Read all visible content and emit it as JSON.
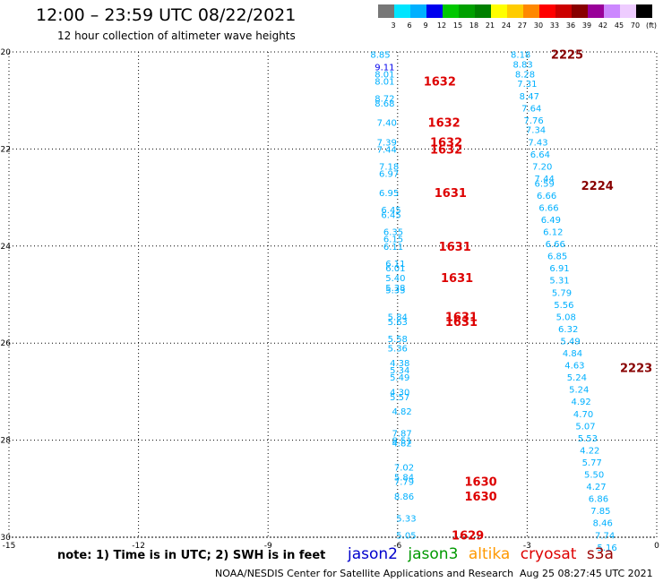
{
  "header": {
    "title": "12:00 – 23:59 UTC 08/22/2021",
    "subtitle": "12 hour collection of altimeter wave heights"
  },
  "footer": {
    "note": "note: 1) Time is in UTC; 2) SWH is in feet",
    "credit": "NOAA/NESDIS Center for Satellite Applications and Research",
    "timestamp": "Aug 25 08:27:45 UTC 2021"
  },
  "satellites": [
    {
      "name": "jason2",
      "color": "#0000cc"
    },
    {
      "name": "jason3",
      "color": "#009900"
    },
    {
      "name": "altika",
      "color": "#ff9900"
    },
    {
      "name": "cryosat",
      "color": "#dd0000"
    },
    {
      "name": "s3a",
      "color": "#990000"
    }
  ],
  "colorbar": {
    "labels": [
      "3",
      "6",
      "9",
      "12",
      "15",
      "18",
      "21",
      "24",
      "27",
      "30",
      "33",
      "36",
      "39",
      "42",
      "45",
      "70",
      "(ft)"
    ],
    "colors": [
      "#777777",
      "#00e5ff",
      "#00b0ff",
      "#0000ee",
      "#00c800",
      "#00a000",
      "#008000",
      "#ffff00",
      "#ffcc00",
      "#ff8800",
      "#ff0000",
      "#cc0000",
      "#880000",
      "#990099",
      "#cc88ff",
      "#eeccff",
      "#000000"
    ]
  },
  "chart_data": {
    "type": "scatter",
    "title": "12:00 – 23:59 UTC 08/22/2021",
    "xlabel": "",
    "ylabel": "",
    "xlim": [
      -15,
      0
    ],
    "ylim": [
      -30,
      -20
    ],
    "x_ticks": [
      "-15",
      "-12",
      "-9",
      "-6",
      "-3",
      "0"
    ],
    "y_ticks": [
      "-20",
      "-22",
      "-24",
      "-26",
      "-28",
      "-30"
    ],
    "grid": true,
    "wave_heights": [
      {
        "lon": -6.4,
        "lat": -20.05,
        "swh": "8.85",
        "color": "#00b0ff"
      },
      {
        "lon": -6.3,
        "lat": -20.3,
        "swh": "9.11",
        "color": "#0000ee"
      },
      {
        "lon": -6.3,
        "lat": -20.45,
        "swh": "8.01",
        "color": "#00b0ff"
      },
      {
        "lon": -6.3,
        "lat": -20.6,
        "swh": "8.01",
        "color": "#00b0ff"
      },
      {
        "lon": -6.3,
        "lat": -20.95,
        "swh": "8.72",
        "color": "#00b0ff"
      },
      {
        "lon": -6.3,
        "lat": -21.05,
        "swh": "8.68",
        "color": "#00b0ff"
      },
      {
        "lon": -6.25,
        "lat": -21.45,
        "swh": "7.40",
        "color": "#00b0ff"
      },
      {
        "lon": -6.25,
        "lat": -21.85,
        "swh": "7.39",
        "color": "#00b0ff"
      },
      {
        "lon": -6.25,
        "lat": -22.0,
        "swh": "7.44",
        "color": "#00b0ff"
      },
      {
        "lon": -6.2,
        "lat": -22.35,
        "swh": "7.18",
        "color": "#00b0ff"
      },
      {
        "lon": -6.2,
        "lat": -22.5,
        "swh": "6.97",
        "color": "#00b0ff"
      },
      {
        "lon": -6.2,
        "lat": -22.9,
        "swh": "6.95",
        "color": "#00b0ff"
      },
      {
        "lon": -6.15,
        "lat": -23.25,
        "swh": "6.45",
        "color": "#00b0ff"
      },
      {
        "lon": -6.15,
        "lat": -23.35,
        "swh": "6.45",
        "color": "#00b0ff"
      },
      {
        "lon": -6.1,
        "lat": -23.7,
        "swh": "6.35",
        "color": "#00b0ff"
      },
      {
        "lon": -6.1,
        "lat": -23.85,
        "swh": "6.15",
        "color": "#00b0ff"
      },
      {
        "lon": -6.1,
        "lat": -24.0,
        "swh": "6.11",
        "color": "#00b0ff"
      },
      {
        "lon": -6.05,
        "lat": -24.35,
        "swh": "6.11",
        "color": "#00b0ff"
      },
      {
        "lon": -6.05,
        "lat": -24.45,
        "swh": "6.01",
        "color": "#00b0ff"
      },
      {
        "lon": -6.05,
        "lat": -24.65,
        "swh": "5.40",
        "color": "#00b0ff"
      },
      {
        "lon": -6.05,
        "lat": -24.85,
        "swh": "5.38",
        "color": "#00b0ff"
      },
      {
        "lon": -6.05,
        "lat": -24.9,
        "swh": "5.33",
        "color": "#00b0ff"
      },
      {
        "lon": -6.0,
        "lat": -25.45,
        "swh": "5.84",
        "color": "#00b0ff"
      },
      {
        "lon": -6.0,
        "lat": -25.55,
        "swh": "5.63",
        "color": "#00b0ff"
      },
      {
        "lon": -6.0,
        "lat": -25.9,
        "swh": "5.58",
        "color": "#00b0ff"
      },
      {
        "lon": -6.0,
        "lat": -26.1,
        "swh": "5.36",
        "color": "#00b0ff"
      },
      {
        "lon": -5.95,
        "lat": -26.4,
        "swh": "4.38",
        "color": "#00b0ff"
      },
      {
        "lon": -5.95,
        "lat": -26.55,
        "swh": "5.34",
        "color": "#00b0ff"
      },
      {
        "lon": -5.95,
        "lat": -26.7,
        "swh": "5.49",
        "color": "#00b0ff"
      },
      {
        "lon": -5.95,
        "lat": -27.0,
        "swh": "4.30",
        "color": "#00b0ff"
      },
      {
        "lon": -5.95,
        "lat": -27.1,
        "swh": "5.57",
        "color": "#00b0ff"
      },
      {
        "lon": -5.9,
        "lat": -27.4,
        "swh": "4.82",
        "color": "#00b0ff"
      },
      {
        "lon": -5.9,
        "lat": -27.85,
        "swh": "7.87",
        "color": "#00b0ff"
      },
      {
        "lon": -5.9,
        "lat": -28.0,
        "swh": "8.51",
        "color": "#00b0ff"
      },
      {
        "lon": -5.9,
        "lat": -28.05,
        "swh": "4.82",
        "color": "#00b0ff"
      },
      {
        "lon": -5.85,
        "lat": -28.55,
        "swh": "7.02",
        "color": "#00b0ff"
      },
      {
        "lon": -5.85,
        "lat": -28.75,
        "swh": "5.84",
        "color": "#00b0ff"
      },
      {
        "lon": -5.85,
        "lat": -28.85,
        "swh": "7.79",
        "color": "#00b0ff"
      },
      {
        "lon": -5.85,
        "lat": -29.15,
        "swh": "8.86",
        "color": "#00b0ff"
      },
      {
        "lon": -5.8,
        "lat": -29.6,
        "swh": "5.33",
        "color": "#00b0ff"
      },
      {
        "lon": -5.8,
        "lat": -29.95,
        "swh": "5.05",
        "color": "#00b0ff"
      },
      {
        "lon": -3.15,
        "lat": -20.05,
        "swh": "8.18",
        "color": "#00b0ff"
      },
      {
        "lon": -3.1,
        "lat": -20.25,
        "swh": "8.83",
        "color": "#00b0ff"
      },
      {
        "lon": -3.05,
        "lat": -20.45,
        "swh": "8.28",
        "color": "#00b0ff"
      },
      {
        "lon": -3.0,
        "lat": -20.65,
        "swh": "7.31",
        "color": "#00b0ff"
      },
      {
        "lon": -2.95,
        "lat": -20.9,
        "swh": "8.47",
        "color": "#00b0ff"
      },
      {
        "lon": -2.9,
        "lat": -21.15,
        "swh": "7.64",
        "color": "#00b0ff"
      },
      {
        "lon": -2.85,
        "lat": -21.4,
        "swh": "7.76",
        "color": "#00b0ff"
      },
      {
        "lon": -2.8,
        "lat": -21.6,
        "swh": "7.34",
        "color": "#00b0ff"
      },
      {
        "lon": -2.75,
        "lat": -21.85,
        "swh": "7.43",
        "color": "#00b0ff"
      },
      {
        "lon": -2.7,
        "lat": -22.1,
        "swh": "6.64",
        "color": "#00b0ff"
      },
      {
        "lon": -2.65,
        "lat": -22.35,
        "swh": "7.20",
        "color": "#00b0ff"
      },
      {
        "lon": -2.6,
        "lat": -22.6,
        "swh": "7.44",
        "color": "#00b0ff"
      },
      {
        "lon": -2.6,
        "lat": -22.7,
        "swh": "6.59",
        "color": "#00b0ff"
      },
      {
        "lon": -2.55,
        "lat": -22.95,
        "swh": "6.66",
        "color": "#00b0ff"
      },
      {
        "lon": -2.5,
        "lat": -23.2,
        "swh": "6.66",
        "color": "#00b0ff"
      },
      {
        "lon": -2.45,
        "lat": -23.45,
        "swh": "6.49",
        "color": "#00b0ff"
      },
      {
        "lon": -2.4,
        "lat": -23.7,
        "swh": "6.12",
        "color": "#00b0ff"
      },
      {
        "lon": -2.35,
        "lat": -23.95,
        "swh": "6.66",
        "color": "#00b0ff"
      },
      {
        "lon": -2.3,
        "lat": -24.2,
        "swh": "6.85",
        "color": "#00b0ff"
      },
      {
        "lon": -2.25,
        "lat": -24.45,
        "swh": "6.91",
        "color": "#00b0ff"
      },
      {
        "lon": -2.25,
        "lat": -24.7,
        "swh": "5.31",
        "color": "#00b0ff"
      },
      {
        "lon": -2.2,
        "lat": -24.95,
        "swh": "5.79",
        "color": "#00b0ff"
      },
      {
        "lon": -2.15,
        "lat": -25.2,
        "swh": "5.56",
        "color": "#00b0ff"
      },
      {
        "lon": -2.1,
        "lat": -25.45,
        "swh": "5.08",
        "color": "#00b0ff"
      },
      {
        "lon": -2.05,
        "lat": -25.7,
        "swh": "6.32",
        "color": "#00b0ff"
      },
      {
        "lon": -2.0,
        "lat": -25.95,
        "swh": "5.49",
        "color": "#00b0ff"
      },
      {
        "lon": -1.95,
        "lat": -26.2,
        "swh": "4.84",
        "color": "#00b0ff"
      },
      {
        "lon": -1.9,
        "lat": -26.45,
        "swh": "4.63",
        "color": "#00b0ff"
      },
      {
        "lon": -1.85,
        "lat": -26.7,
        "swh": "5.24",
        "color": "#00b0ff"
      },
      {
        "lon": -1.8,
        "lat": -26.95,
        "swh": "5.24",
        "color": "#00b0ff"
      },
      {
        "lon": -1.75,
        "lat": -27.2,
        "swh": "4.92",
        "color": "#00b0ff"
      },
      {
        "lon": -1.7,
        "lat": -27.45,
        "swh": "4.70",
        "color": "#00b0ff"
      },
      {
        "lon": -1.65,
        "lat": -27.7,
        "swh": "5.07",
        "color": "#00b0ff"
      },
      {
        "lon": -1.6,
        "lat": -27.95,
        "swh": "5.53",
        "color": "#00b0ff"
      },
      {
        "lon": -1.55,
        "lat": -28.2,
        "swh": "4.22",
        "color": "#00b0ff"
      },
      {
        "lon": -1.5,
        "lat": -28.45,
        "swh": "5.77",
        "color": "#00b0ff"
      },
      {
        "lon": -1.45,
        "lat": -28.7,
        "swh": "5.50",
        "color": "#00b0ff"
      },
      {
        "lon": -1.4,
        "lat": -28.95,
        "swh": "4.27",
        "color": "#00b0ff"
      },
      {
        "lon": -1.35,
        "lat": -29.2,
        "swh": "6.86",
        "color": "#00b0ff"
      },
      {
        "lon": -1.3,
        "lat": -29.45,
        "swh": "7.85",
        "color": "#00b0ff"
      },
      {
        "lon": -1.25,
        "lat": -29.7,
        "swh": "8.46",
        "color": "#00b0ff"
      },
      {
        "lon": -1.2,
        "lat": -29.95,
        "swh": "7.74",
        "color": "#00b0ff"
      },
      {
        "lon": -1.15,
        "lat": -30.2,
        "swh": "5.16",
        "color": "#00b0ff"
      }
    ],
    "pass_times": [
      {
        "lon": -5.4,
        "lat": -20.6,
        "label": "1632",
        "color": "#dd0000"
      },
      {
        "lon": -5.3,
        "lat": -21.45,
        "label": "1632",
        "color": "#dd0000"
      },
      {
        "lon": -5.25,
        "lat": -21.85,
        "label": "1632",
        "color": "#dd0000"
      },
      {
        "lon": -5.25,
        "lat": -22.0,
        "label": "1632",
        "color": "#dd0000"
      },
      {
        "lon": -5.15,
        "lat": -22.9,
        "label": "1631",
        "color": "#dd0000"
      },
      {
        "lon": -5.05,
        "lat": -24.0,
        "label": "1631",
        "color": "#dd0000"
      },
      {
        "lon": -5.0,
        "lat": -24.65,
        "label": "1631",
        "color": "#dd0000"
      },
      {
        "lon": -4.9,
        "lat": -25.45,
        "label": "1631",
        "color": "#dd0000"
      },
      {
        "lon": -4.9,
        "lat": -25.55,
        "label": "1631",
        "color": "#dd0000"
      },
      {
        "lon": -4.45,
        "lat": -28.85,
        "label": "1630",
        "color": "#dd0000"
      },
      {
        "lon": -4.45,
        "lat": -29.15,
        "label": "1630",
        "color": "#dd0000"
      },
      {
        "lon": -4.75,
        "lat": -29.95,
        "label": "1629",
        "color": "#dd0000"
      },
      {
        "lon": -2.45,
        "lat": -20.05,
        "label": "2225",
        "color": "#880000"
      },
      {
        "lon": -1.75,
        "lat": -22.75,
        "label": "2224",
        "color": "#880000"
      },
      {
        "lon": -0.85,
        "lat": -26.5,
        "label": "2223",
        "color": "#880000"
      }
    ]
  }
}
